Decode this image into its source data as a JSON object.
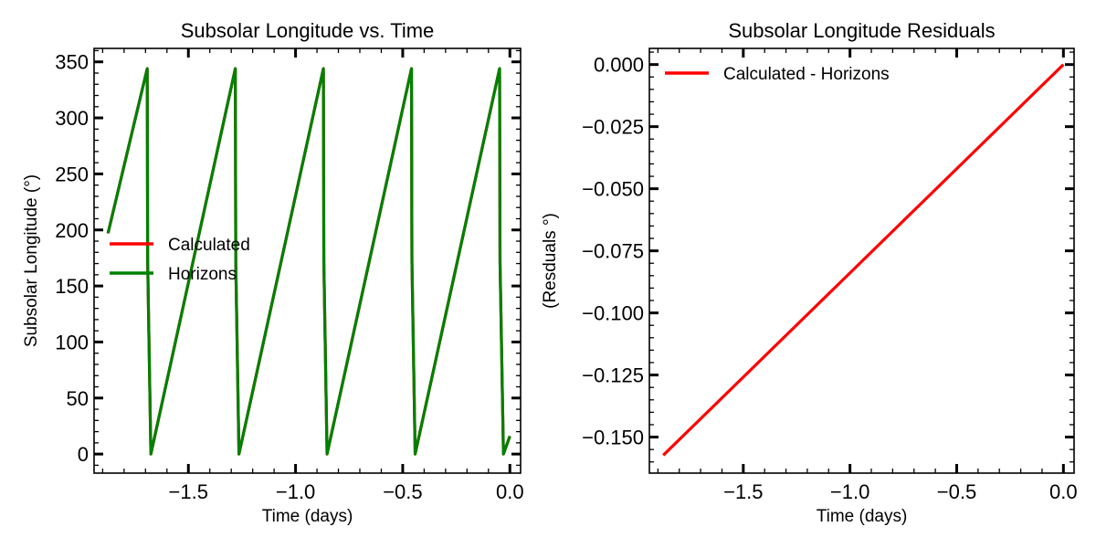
{
  "chart_data": [
    {
      "type": "line",
      "title": "Subsolar Longitude vs. Time",
      "xlabel": "Time (days)",
      "ylabel": "Subsolar Longitude (°)",
      "xlim": [
        -1.94,
        0.05
      ],
      "ylim": [
        -17,
        362
      ],
      "xticks": [
        -1.5,
        -1.0,
        -0.5,
        0.0
      ],
      "xtick_labels": [
        "−1.5",
        "−1.0",
        "−0.5",
        "0.0"
      ],
      "yticks": [
        0,
        50,
        100,
        150,
        200,
        250,
        300,
        350
      ],
      "ytick_labels": [
        "0",
        "50",
        "100",
        "150",
        "200",
        "250",
        "300",
        "350"
      ],
      "legend": "center-left",
      "grid": false,
      "series": [
        {
          "name": "Calculated",
          "color": "#ff0000",
          "x": [
            -1.875,
            -1.692,
            -1.69,
            -1.675,
            -1.281,
            -1.279,
            -1.264,
            -0.87,
            -0.868,
            -0.853,
            -0.459,
            -0.457,
            -0.442,
            -0.048,
            -0.046,
            -0.03,
            0.0
          ],
          "y": [
            197,
            344,
            172,
            0,
            344,
            172,
            0,
            344,
            172,
            0,
            344,
            172,
            0,
            344,
            172,
            0,
            16
          ]
        },
        {
          "name": "Horizons",
          "color": "#008000",
          "x": [
            -1.875,
            -1.692,
            -1.69,
            -1.675,
            -1.281,
            -1.279,
            -1.264,
            -0.87,
            -0.868,
            -0.853,
            -0.459,
            -0.457,
            -0.442,
            -0.048,
            -0.046,
            -0.03,
            0.0
          ],
          "y": [
            197,
            344,
            172,
            0,
            344,
            172,
            0,
            344,
            172,
            0,
            344,
            172,
            0,
            344,
            172,
            0,
            16
          ]
        }
      ]
    },
    {
      "type": "line",
      "title": "Subsolar Longitude Residuals",
      "xlabel": "Time (days)",
      "ylabel": "(Resduals °)",
      "xlim": [
        -1.94,
        0.05
      ],
      "ylim": [
        -0.1645,
        0.0065
      ],
      "xticks": [
        -1.5,
        -1.0,
        -0.5,
        0.0
      ],
      "xtick_labels": [
        "−1.5",
        "−1.0",
        "−0.5",
        "0.0"
      ],
      "yticks": [
        0.0,
        -0.025,
        -0.05,
        -0.075,
        -0.1,
        -0.125,
        -0.15
      ],
      "ytick_labels": [
        "0.000",
        "−0.025",
        "−0.050",
        "−0.075",
        "−0.100",
        "−0.125",
        "−0.150"
      ],
      "legend": "top-left",
      "grid": false,
      "series": [
        {
          "name": "Calculated - Horizons",
          "color": "#ff0000",
          "x": [
            -1.875,
            0.0
          ],
          "y": [
            -0.1573,
            0.0
          ]
        }
      ]
    }
  ]
}
